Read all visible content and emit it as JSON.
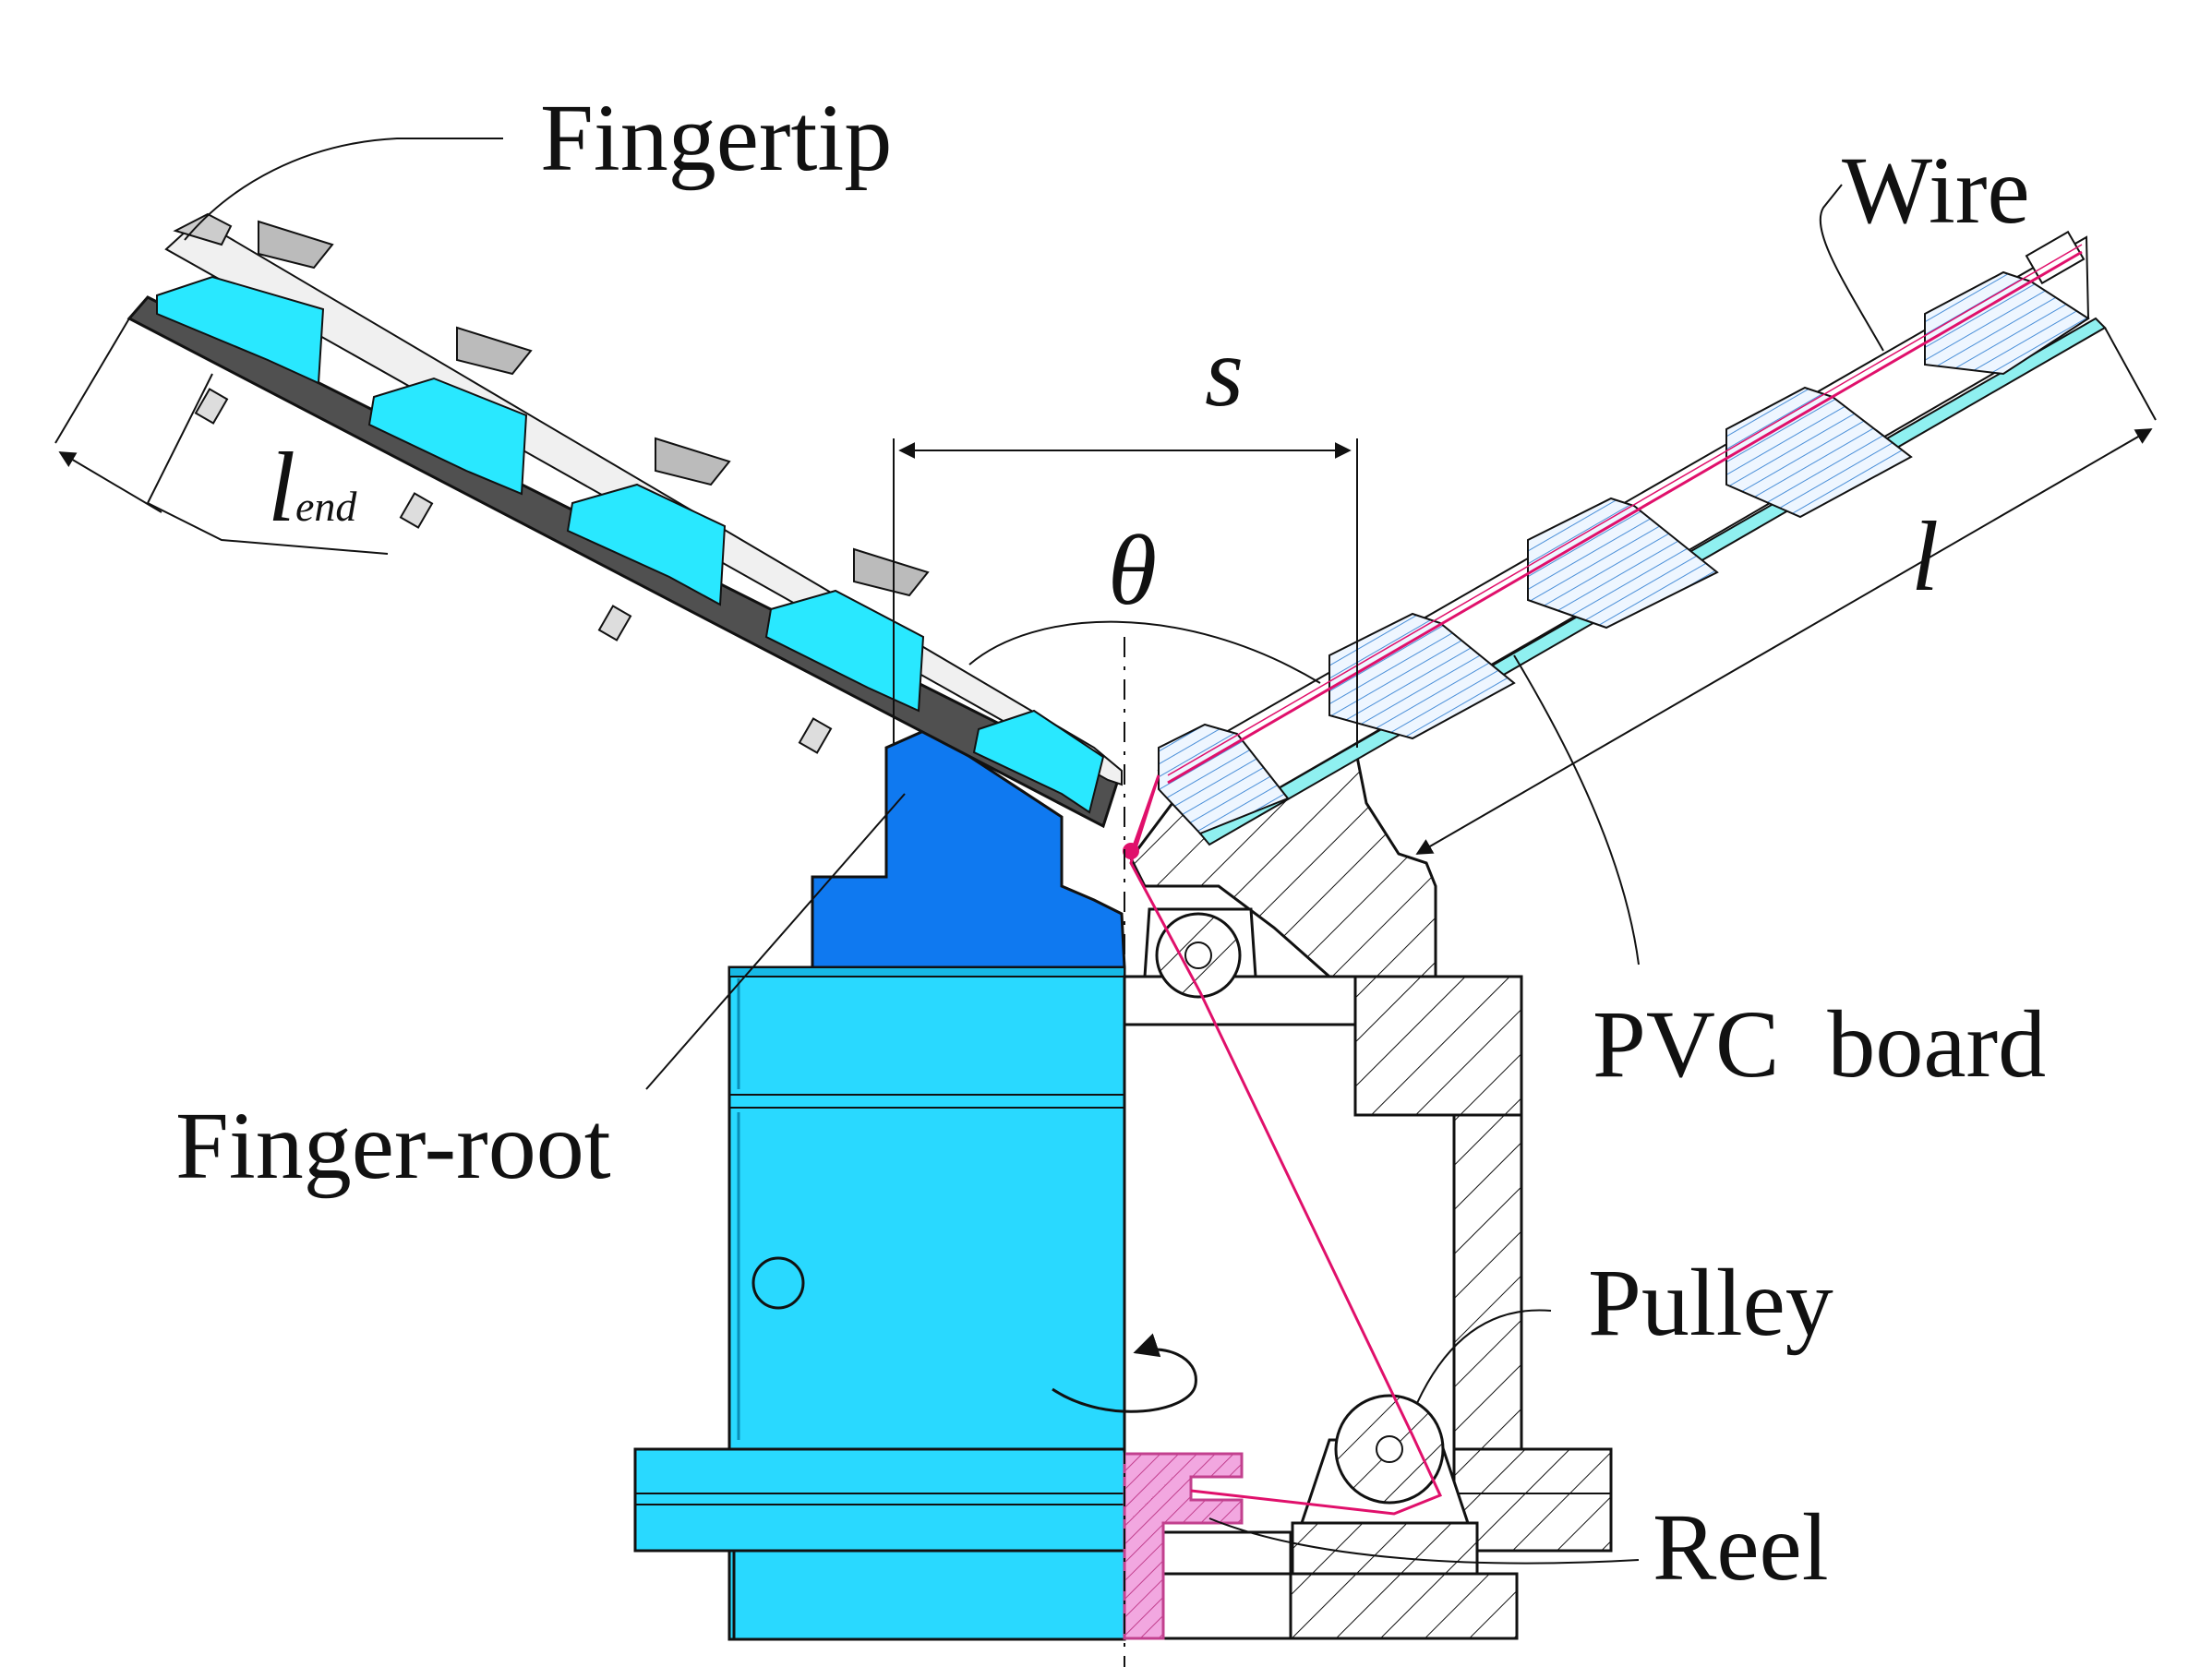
{
  "labels": {
    "fingertip": "Fingertip",
    "wire": "Wire",
    "s": "s",
    "theta": "θ",
    "l": "l",
    "l_end_main": "l",
    "l_end_sub": "end",
    "pvc_board": "PVC  board",
    "finger_root": "Finger-root",
    "pulley": "Pulley",
    "reel": "Reel"
  },
  "colors": {
    "body_blue": "#29d9ff",
    "root_dark_blue": "#0f79f0",
    "wire_magenta": "#e0106b",
    "reel_pink": "#f2a7e0",
    "board_cyan": "#8ff0f0",
    "hatch_blue": "#4a8fd8",
    "plate_dark": "#505050",
    "outline": "#111111"
  }
}
